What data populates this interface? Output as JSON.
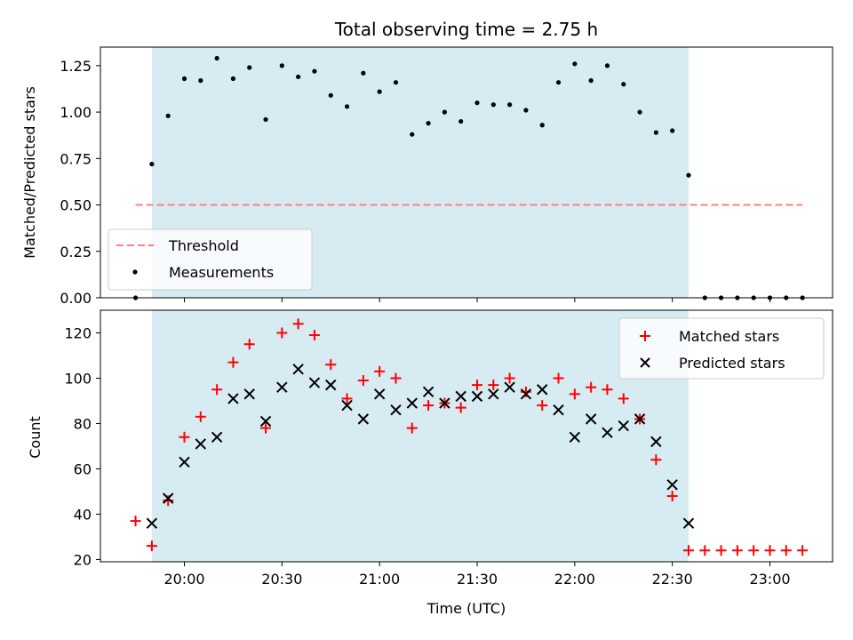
{
  "title": "Total observing time = 2.75 h",
  "chart_data": [
    {
      "type": "scatter",
      "ylabel": "Matched/Predicted stars",
      "xlabel": "",
      "x_unit": "minutes after 19:00 UTC",
      "xlim": [
        "19:30",
        "23:20"
      ],
      "ylim": [
        0,
        1.35
      ],
      "yticks": [
        "0.00",
        "0.25",
        "0.50",
        "0.75",
        "1.00",
        "1.25"
      ],
      "ytick_values": [
        0,
        0.25,
        0.5,
        0.75,
        1.0,
        1.25
      ],
      "observing_window": [
        "19:50",
        "22:35"
      ],
      "threshold": {
        "label": "Threshold",
        "value": 0.5,
        "x_range": [
          "19:45",
          "23:10"
        ],
        "color": "#ff7f7f"
      },
      "series": [
        {
          "name": "Measurements",
          "color": "#000000",
          "x": [
            "19:45",
            "19:50",
            "19:55",
            "20:00",
            "20:05",
            "20:10",
            "20:15",
            "20:20",
            "20:25",
            "20:30",
            "20:35",
            "20:40",
            "20:45",
            "20:50",
            "20:55",
            "21:00",
            "21:05",
            "21:10",
            "21:15",
            "21:20",
            "21:25",
            "21:30",
            "21:35",
            "21:40",
            "21:45",
            "21:50",
            "21:55",
            "22:00",
            "22:05",
            "22:10",
            "22:15",
            "22:20",
            "22:25",
            "22:30",
            "22:35",
            "22:40",
            "22:45",
            "22:50",
            "22:55",
            "23:00",
            "23:05",
            "23:10"
          ],
          "y": [
            0.0,
            0.72,
            0.98,
            1.18,
            1.17,
            1.29,
            1.18,
            1.24,
            0.96,
            1.25,
            1.19,
            1.22,
            1.09,
            1.03,
            1.21,
            1.11,
            1.16,
            0.88,
            0.94,
            1.0,
            0.95,
            1.05,
            1.04,
            1.04,
            1.01,
            0.93,
            1.16,
            1.26,
            1.17,
            1.25,
            1.15,
            1.0,
            0.89,
            0.9,
            0.66,
            0.0,
            0.0,
            0.0,
            0.0,
            0.0,
            0.0,
            0.0
          ]
        }
      ],
      "legend": {
        "position": "lower-left",
        "entries": [
          "Threshold",
          "Measurements"
        ]
      }
    },
    {
      "type": "scatter",
      "ylabel": "Count",
      "xlabel": "Time (UTC)",
      "x_unit": "minutes after 19:00 UTC",
      "xlim": [
        "19:30",
        "23:20"
      ],
      "ylim": [
        19,
        130
      ],
      "yticks": [
        "20",
        "40",
        "60",
        "80",
        "100",
        "120"
      ],
      "ytick_values": [
        20,
        40,
        60,
        80,
        100,
        120
      ],
      "xticks": [
        "20:00",
        "20:30",
        "21:00",
        "21:30",
        "22:00",
        "22:30",
        "23:00"
      ],
      "observing_window": [
        "19:50",
        "22:35"
      ],
      "series": [
        {
          "name": "Matched stars",
          "marker": "+",
          "color": "#ff0000",
          "x": [
            "19:45",
            "19:50",
            "19:55",
            "20:00",
            "20:05",
            "20:10",
            "20:15",
            "20:20",
            "20:25",
            "20:30",
            "20:35",
            "20:40",
            "20:45",
            "20:50",
            "20:55",
            "21:00",
            "21:05",
            "21:10",
            "21:15",
            "21:20",
            "21:25",
            "21:30",
            "21:35",
            "21:40",
            "21:45",
            "21:50",
            "21:55",
            "22:00",
            "22:05",
            "22:10",
            "22:15",
            "22:20",
            "22:25",
            "22:30",
            "22:35",
            "22:40",
            "22:45",
            "22:50",
            "22:55",
            "23:00",
            "23:05",
            "23:10"
          ],
          "y": [
            37,
            26,
            46,
            74,
            83,
            95,
            107,
            115,
            78,
            120,
            124,
            119,
            106,
            91,
            99,
            103,
            100,
            78,
            88,
            89,
            87,
            97,
            97,
            100,
            94,
            88,
            100,
            93,
            96,
            95,
            91,
            82,
            64,
            48,
            24,
            24,
            24,
            24,
            24,
            24,
            24,
            24
          ]
        },
        {
          "name": "Predicted stars",
          "marker": "x",
          "color": "#000000",
          "x": [
            "19:50",
            "19:55",
            "20:00",
            "20:05",
            "20:10",
            "20:15",
            "20:20",
            "20:25",
            "20:30",
            "20:35",
            "20:40",
            "20:45",
            "20:50",
            "20:55",
            "21:00",
            "21:05",
            "21:10",
            "21:15",
            "21:20",
            "21:25",
            "21:30",
            "21:35",
            "21:40",
            "21:45",
            "21:50",
            "21:55",
            "22:00",
            "22:05",
            "22:10",
            "22:15",
            "22:20",
            "22:25",
            "22:30",
            "22:35"
          ],
          "y": [
            36,
            47,
            63,
            71,
            74,
            91,
            93,
            81,
            96,
            104,
            98,
            97,
            88,
            82,
            93,
            86,
            89,
            94,
            89,
            92,
            92,
            93,
            96,
            93,
            95,
            86,
            74,
            82,
            76,
            79,
            82,
            72,
            53,
            36
          ]
        }
      ],
      "legend": {
        "position": "upper-right",
        "entries": [
          "Matched stars",
          "Predicted stars"
        ]
      }
    }
  ],
  "colors": {
    "span_fill": "#add8e6",
    "threshold": "#ff7f7f",
    "matched": "#ff0000",
    "predicted": "#000000"
  }
}
